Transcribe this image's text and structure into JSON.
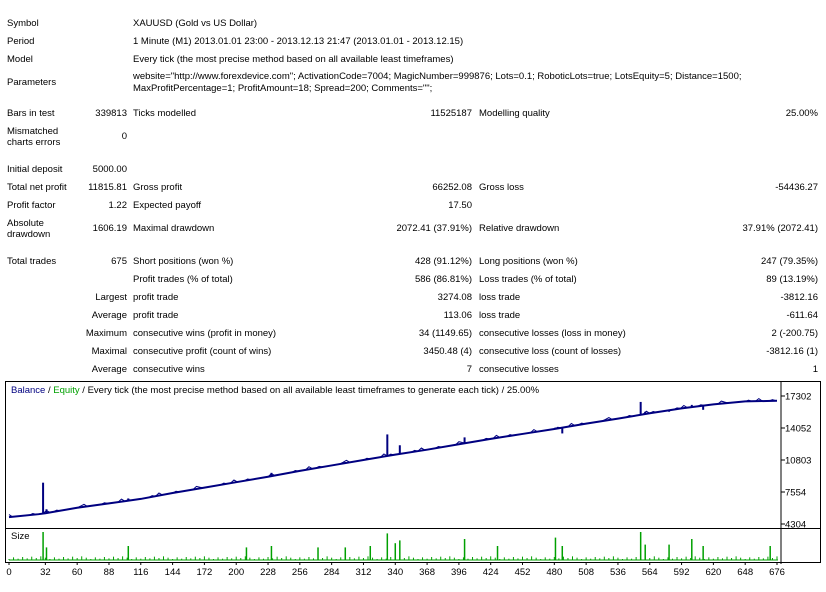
{
  "report": {
    "symbol": {
      "label": "Symbol",
      "value": "XAUUSD (Gold vs US Dollar)"
    },
    "period": {
      "label": "Period",
      "value": "1 Minute (M1) 2013.01.01 23:00 - 2013.12.13 21:47 (2013.01.01 - 2013.12.15)"
    },
    "model": {
      "label": "Model",
      "value": "Every tick (the most precise method based on all available least timeframes)"
    },
    "parameters": {
      "label": "Parameters",
      "line1": "website=\"http://www.forexdevice.com\"; ActivationCode=7004; MagicNumber=999876; Lots=0.1; RoboticLots=true; LotsEquity=5; Distance=1500;",
      "line2": "MaxProfitPercentage=1; ProfitAmount=18; Spread=200; Comments=\"\";"
    },
    "bars_in_test": {
      "label": "Bars in test",
      "value": "339813"
    },
    "ticks_modelled": {
      "label": "Ticks modelled",
      "value": "11525187"
    },
    "modelling_quality": {
      "label": "Modelling quality",
      "value": "25.00%"
    },
    "mismatched": {
      "label": "Mismatched charts errors",
      "value": "0"
    },
    "initial_deposit": {
      "label": "Initial deposit",
      "value": "5000.00"
    },
    "total_net_profit": {
      "label": "Total net profit",
      "value": "11815.81"
    },
    "gross_profit": {
      "label": "Gross profit",
      "value": "66252.08"
    },
    "gross_loss": {
      "label": "Gross loss",
      "value": "-54436.27"
    },
    "profit_factor": {
      "label": "Profit factor",
      "value": "1.22"
    },
    "expected_payoff": {
      "label": "Expected payoff",
      "value": "17.50"
    },
    "absolute_drawdown": {
      "label": "Absolute drawdown",
      "value": "1606.19"
    },
    "maximal_drawdown": {
      "label": "Maximal drawdown",
      "value": "2072.41 (37.91%)"
    },
    "relative_drawdown": {
      "label": "Relative drawdown",
      "value": "37.91% (2072.41)"
    },
    "total_trades": {
      "label": "Total trades",
      "value": "675"
    },
    "short_positions": {
      "label": "Short positions (won %)",
      "value": "428 (91.12%)"
    },
    "long_positions": {
      "label": "Long positions (won %)",
      "value": "247 (79.35%)"
    },
    "profit_trades": {
      "label": "Profit trades (% of total)",
      "value": "586 (86.81%)"
    },
    "loss_trades": {
      "label": "Loss trades (% of total)",
      "value": "89 (13.19%)"
    },
    "largest": {
      "label": "Largest",
      "profit_label": "profit trade",
      "profit_value": "3274.08",
      "loss_label": "loss trade",
      "loss_value": "-3812.16"
    },
    "average": {
      "label": "Average",
      "profit_label": "profit trade",
      "profit_value": "113.06",
      "loss_label": "loss trade",
      "loss_value": "-611.64"
    },
    "maximum": {
      "label": "Maximum",
      "wins_label": "consecutive wins (profit in money)",
      "wins_value": "34 (1149.65)",
      "losses_label": "consecutive losses (loss in money)",
      "losses_value": "2 (-200.75)"
    },
    "maximal": {
      "label": "Maximal",
      "profit_label": "consecutive profit (count of wins)",
      "profit_value": "3450.48 (4)",
      "loss_label": "consecutive loss (count of losses)",
      "loss_value": "-3812.16 (1)"
    },
    "average_consec": {
      "label": "Average",
      "wins_label": "consecutive wins",
      "wins_value": "7",
      "losses_label": "consecutive losses",
      "losses_value": "1"
    }
  },
  "chart_header": {
    "balance": "Balance",
    "sep1": " / ",
    "equity": "Equity",
    "rest": " / Every tick (the most precise method based on all available least timeframes to generate each tick) / 25.00%"
  },
  "size_label": "Size",
  "colors": {
    "balance": "#000080",
    "equity": "#00a000",
    "size": "#00a000"
  },
  "chart_data": {
    "type": "line",
    "x": [
      0,
      32,
      60,
      88,
      116,
      144,
      172,
      200,
      228,
      256,
      284,
      312,
      340,
      368,
      396,
      424,
      452,
      480,
      508,
      536,
      564,
      592,
      620,
      648,
      676
    ],
    "xlim": [
      0,
      676
    ],
    "ylim": [
      4304,
      17302
    ],
    "y_ticks": [
      17302,
      14052,
      10803,
      7554,
      4304
    ],
    "x_tick_labels": [
      "0",
      "32",
      "60",
      "88",
      "116",
      "144",
      "172",
      "200",
      "228",
      "256",
      "284",
      "312",
      "340",
      "368",
      "396",
      "424",
      "452",
      "480",
      "508",
      "536",
      "564",
      "592",
      "620",
      "648",
      "676"
    ],
    "series": [
      {
        "name": "Balance",
        "x": [
          0,
          26,
          32,
          60,
          88,
          116,
          144,
          172,
          200,
          228,
          256,
          284,
          312,
          340,
          368,
          396,
          424,
          452,
          480,
          508,
          536,
          564,
          592,
          620,
          648,
          676
        ],
        "values": [
          5000,
          5300,
          5400,
          5950,
          6400,
          6850,
          7450,
          8000,
          8550,
          9100,
          9700,
          10250,
          10800,
          11350,
          11850,
          12400,
          12950,
          13450,
          13950,
          14500,
          15000,
          15550,
          16050,
          16450,
          16750,
          16820
        ]
      },
      {
        "name": "Equity",
        "spikes": [
          {
            "x": 30,
            "value": 8500
          },
          {
            "x": 33,
            "value": 5800
          },
          {
            "x": 105,
            "value": 6900
          },
          {
            "x": 209,
            "value": 8800
          },
          {
            "x": 231,
            "value": 9500
          },
          {
            "x": 272,
            "value": 10100
          },
          {
            "x": 296,
            "value": 10600
          },
          {
            "x": 318,
            "value": 11000
          },
          {
            "x": 333,
            "value": 13400
          },
          {
            "x": 344,
            "value": 12300
          },
          {
            "x": 401,
            "value": 13100
          },
          {
            "x": 430,
            "value": 13050
          },
          {
            "x": 481,
            "value": 14100
          },
          {
            "x": 487,
            "value": 13500
          },
          {
            "x": 556,
            "value": 16700
          },
          {
            "x": 560,
            "value": 15700
          },
          {
            "x": 581,
            "value": 15700
          },
          {
            "x": 601,
            "value": 16400
          },
          {
            "x": 611,
            "value": 15900
          },
          {
            "x": 670,
            "value": 16900
          }
        ]
      }
    ],
    "size_spikes": [
      {
        "x": 30,
        "h": 1.0
      },
      {
        "x": 33,
        "h": 0.45
      },
      {
        "x": 105,
        "h": 0.5
      },
      {
        "x": 209,
        "h": 0.45
      },
      {
        "x": 231,
        "h": 0.5
      },
      {
        "x": 272,
        "h": 0.45
      },
      {
        "x": 296,
        "h": 0.45
      },
      {
        "x": 318,
        "h": 0.5
      },
      {
        "x": 333,
        "h": 0.95
      },
      {
        "x": 340,
        "h": 0.6
      },
      {
        "x": 344,
        "h": 0.7
      },
      {
        "x": 401,
        "h": 0.75
      },
      {
        "x": 430,
        "h": 0.5
      },
      {
        "x": 481,
        "h": 0.8
      },
      {
        "x": 487,
        "h": 0.5
      },
      {
        "x": 556,
        "h": 1.0
      },
      {
        "x": 560,
        "h": 0.55
      },
      {
        "x": 581,
        "h": 0.55
      },
      {
        "x": 601,
        "h": 0.75
      },
      {
        "x": 611,
        "h": 0.5
      },
      {
        "x": 670,
        "h": 0.5
      }
    ]
  }
}
